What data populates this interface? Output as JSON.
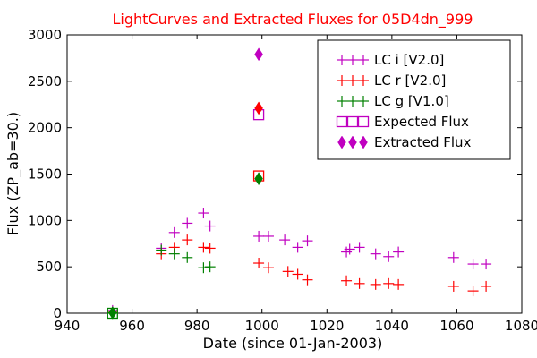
{
  "chart_data": {
    "type": "scatter",
    "title": "LightCurves and Extracted Fluxes for 05D4dn_999",
    "xlabel": "Date (since 01-Jan-2003)",
    "ylabel": "Flux (ZP_ab=30.)",
    "xlim": [
      940,
      1080
    ],
    "ylim": [
      0,
      3000
    ],
    "xticks": [
      940,
      960,
      980,
      1000,
      1020,
      1040,
      1060,
      1080
    ],
    "yticks": [
      0,
      500,
      1000,
      1500,
      2000,
      2500,
      3000
    ],
    "grid": false,
    "legend_position": "top-right",
    "series": [
      {
        "name": "LC i [V2.0]",
        "marker": "plus",
        "color": "#c000c0",
        "points": [
          [
            954,
            30
          ],
          [
            969,
            700
          ],
          [
            973,
            870
          ],
          [
            977,
            970
          ],
          [
            982,
            1080
          ],
          [
            984,
            940
          ],
          [
            999,
            830
          ],
          [
            1002,
            830
          ],
          [
            1007,
            790
          ],
          [
            1011,
            710
          ],
          [
            1014,
            780
          ],
          [
            1026,
            660
          ],
          [
            1027,
            690
          ],
          [
            1030,
            710
          ],
          [
            1035,
            640
          ],
          [
            1039,
            610
          ],
          [
            1042,
            660
          ],
          [
            1059,
            600
          ],
          [
            1065,
            530
          ],
          [
            1069,
            530
          ]
        ]
      },
      {
        "name": "LC r [V2.0]",
        "marker": "plus",
        "color": "#ff0000",
        "points": [
          [
            954,
            10
          ],
          [
            969,
            640
          ],
          [
            973,
            710
          ],
          [
            977,
            790
          ],
          [
            982,
            710
          ],
          [
            984,
            700
          ],
          [
            999,
            540
          ],
          [
            1002,
            490
          ],
          [
            1008,
            450
          ],
          [
            1011,
            420
          ],
          [
            1014,
            360
          ],
          [
            1026,
            350
          ],
          [
            1030,
            320
          ],
          [
            1035,
            310
          ],
          [
            1039,
            320
          ],
          [
            1042,
            310
          ],
          [
            1059,
            290
          ],
          [
            1065,
            240
          ],
          [
            1069,
            290
          ]
        ]
      },
      {
        "name": "LC g [V1.0]",
        "marker": "plus",
        "color": "#008000",
        "points": [
          [
            954,
            0
          ],
          [
            969,
            680
          ],
          [
            973,
            640
          ],
          [
            977,
            600
          ],
          [
            982,
            490
          ],
          [
            984,
            500
          ]
        ]
      },
      {
        "name": "Expected Flux",
        "marker": "square",
        "colors": [
          "#c000c0",
          "#ff0000",
          "#008000"
        ],
        "points": [
          [
            999,
            2140
          ],
          [
            999,
            1480
          ],
          [
            954,
            0
          ]
        ]
      },
      {
        "name": "Extracted Flux",
        "marker": "diamond",
        "points": [
          [
            999,
            2790,
            "#c000c0"
          ],
          [
            999,
            2210,
            "#ff0000"
          ],
          [
            999,
            1450,
            "#008000"
          ],
          [
            954,
            5,
            "#008000"
          ]
        ]
      }
    ],
    "legend": {
      "entries": [
        {
          "name": "LC i [V2.0]",
          "marker": "plus",
          "color": "#c000c0"
        },
        {
          "name": "LC r [V2.0]",
          "marker": "plus",
          "color": "#ff0000"
        },
        {
          "name": "LC g [V1.0]",
          "marker": "plus",
          "color": "#008000"
        },
        {
          "name": "Expected Flux",
          "marker": "square",
          "color": "#c000c0"
        },
        {
          "name": "Extracted Flux",
          "marker": "diamond",
          "color": "#c000c0"
        }
      ]
    }
  }
}
